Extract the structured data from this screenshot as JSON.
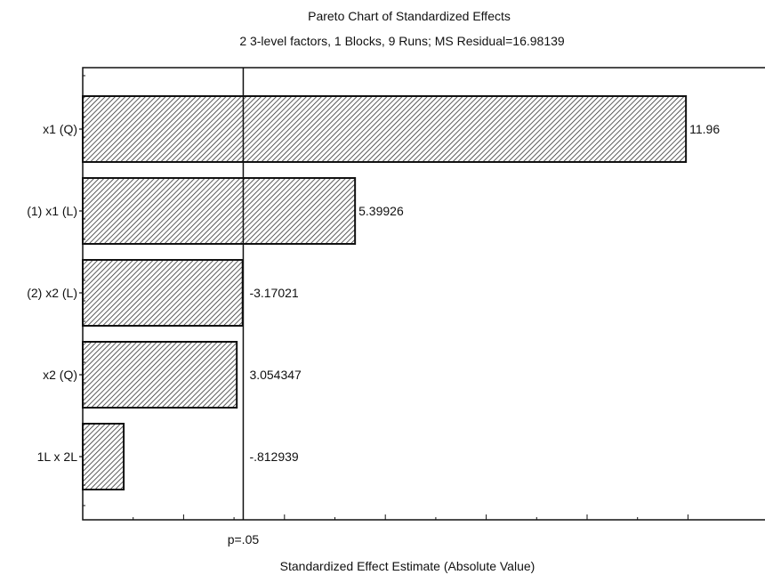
{
  "chart_data": {
    "type": "bar",
    "orientation": "horizontal",
    "title": "Pareto Chart of Standardized Effects",
    "subtitle": "2 3-level factors, 1 Blocks, 9 Runs; MS Residual=16.98139",
    "xlabel": "Standardized Effect Estimate (Absolute Value)",
    "ylabel": "",
    "categories": [
      "x1 (Q)",
      "(1) x1 (L)",
      "(2) x2 (L)",
      "x2 (Q)",
      "1L x 2L"
    ],
    "values": [
      11.96,
      5.39926,
      3.17021,
      3.054347,
      0.812939
    ],
    "value_labels": [
      "11.96",
      "5.39926",
      "-3.17021",
      "3.054347",
      "-.812939"
    ],
    "reference_line": {
      "value": 3.182446,
      "label": "p=.05"
    },
    "xlim": [
      0,
      13
    ],
    "grid": false,
    "bar_fill": "diagonal-hatch",
    "colors": {
      "bar_stroke": "#111111",
      "hatch": "#333333",
      "axis": "#111111",
      "background": "#ffffff"
    }
  }
}
